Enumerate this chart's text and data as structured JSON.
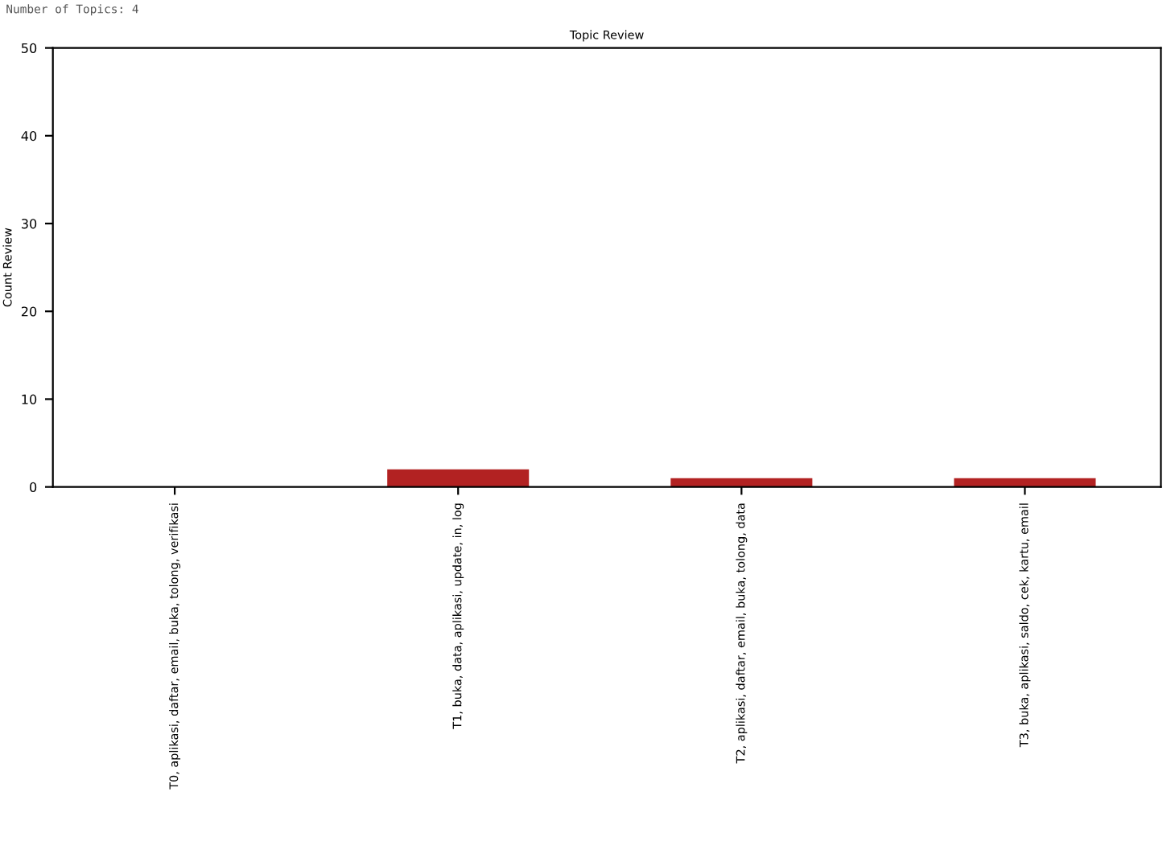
{
  "chart_data": {
    "type": "bar",
    "title": "Topic Review",
    "ylabel": "Count Review",
    "categories": [
      "T0, aplikasi, daftar, email, buka, tolong, verifikasi",
      "T1, buka, data, aplikasi, update, in, log",
      "T2, aplikasi, daftar, email, buka, tolong, data",
      "T3, buka, aplikasi, saldo, cek, kartu, email"
    ],
    "values": [
      0,
      2,
      1,
      1
    ],
    "color": "#b22222",
    "ylim": [
      0,
      50
    ],
    "yticks": [
      0,
      10,
      20,
      30,
      40,
      50
    ],
    "grid": false,
    "legend": false,
    "annotations": [
      "Number of Topics: 4"
    ]
  }
}
